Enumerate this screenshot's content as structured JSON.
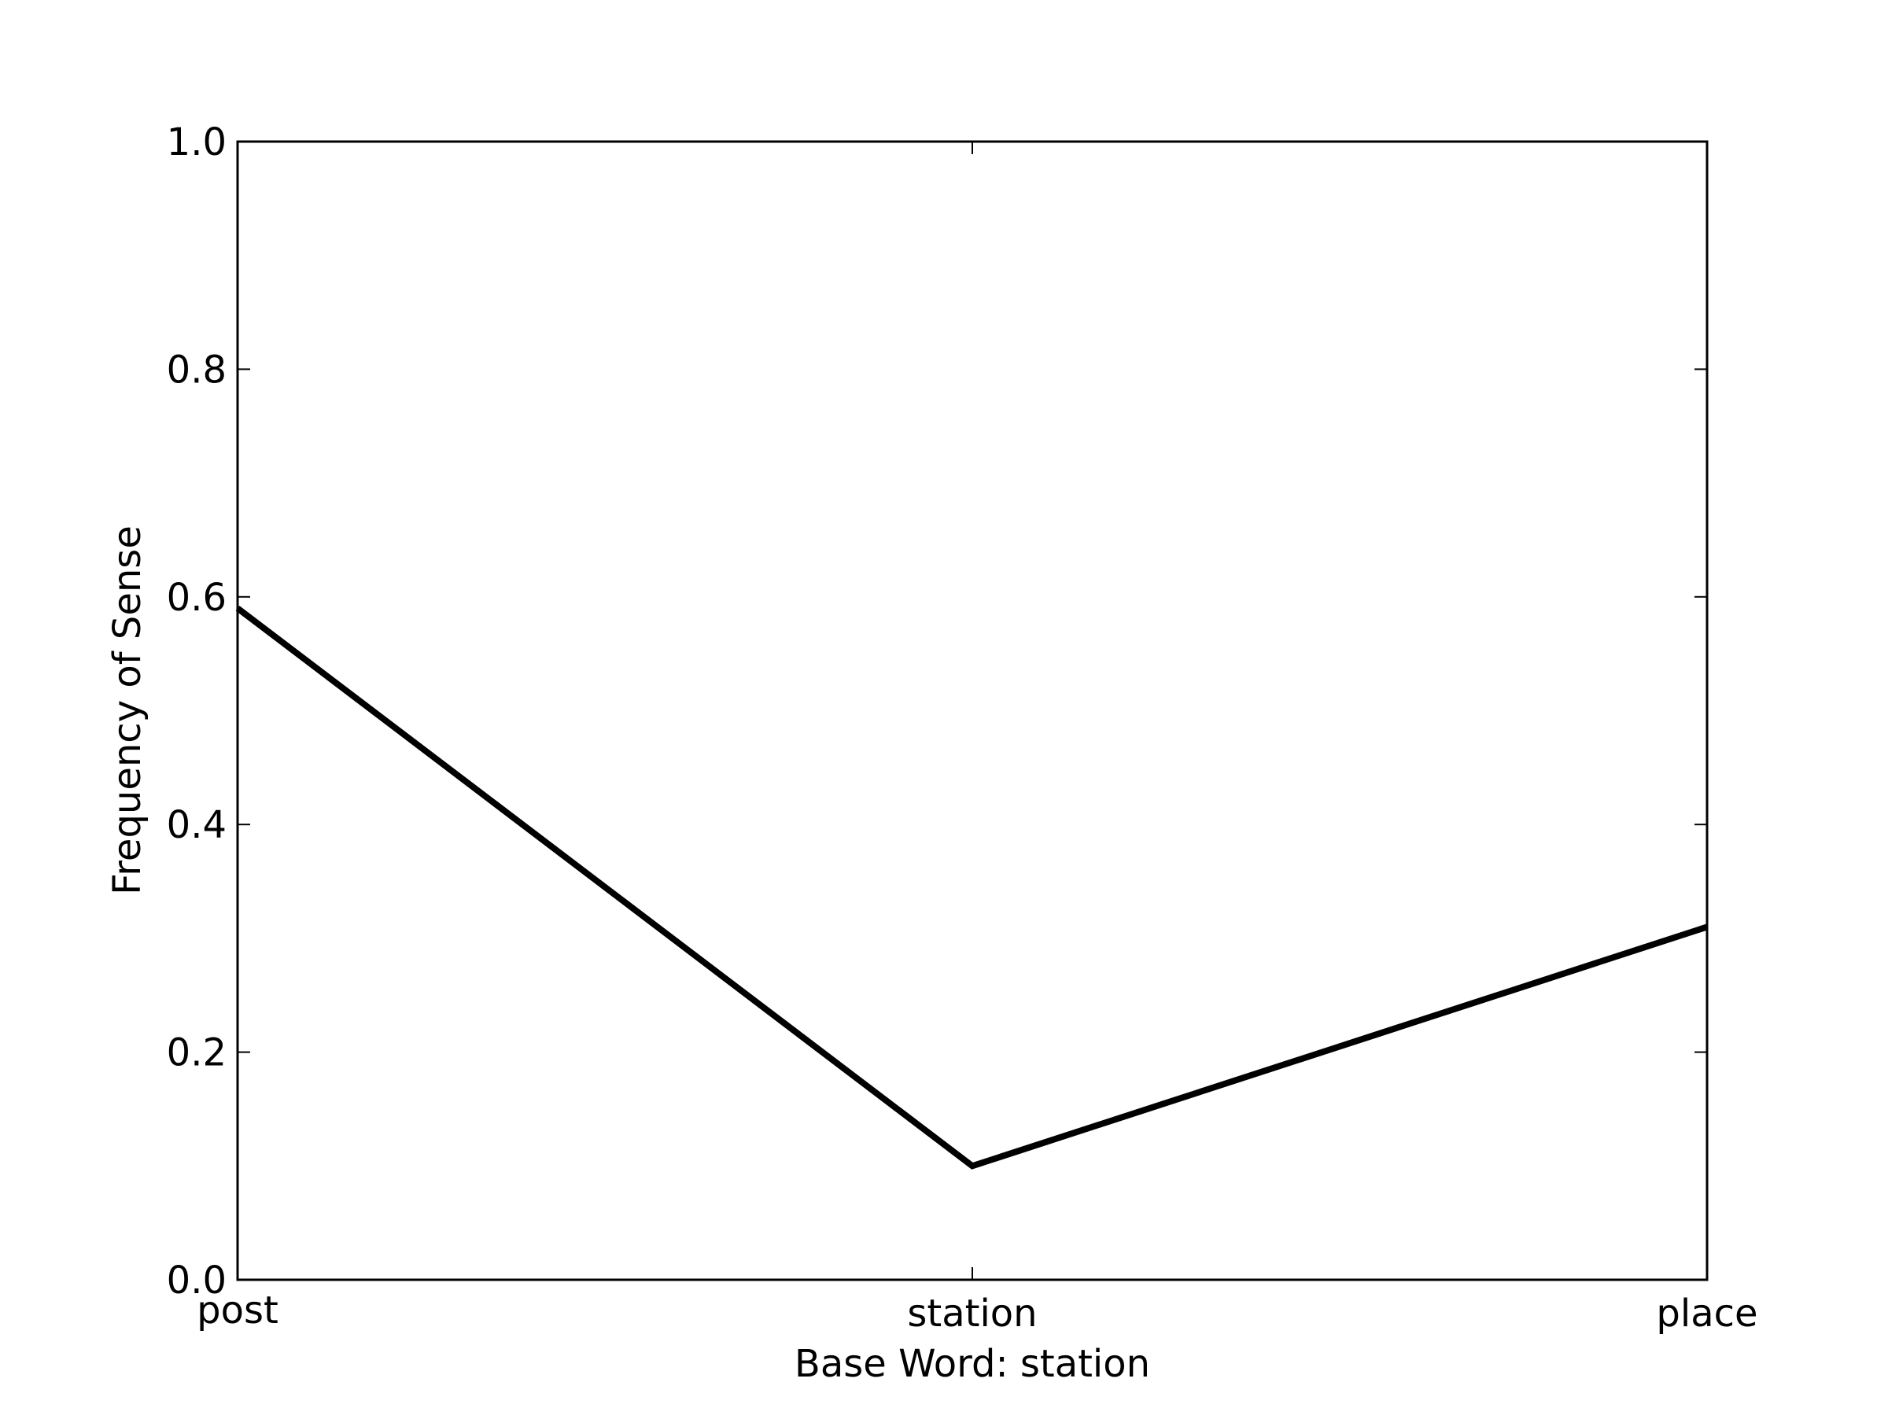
{
  "chart_data": {
    "type": "line",
    "title": "",
    "xlabel": "Base Word: station",
    "ylabel": "Frequency of Sense",
    "categories": [
      "post",
      "station",
      "place"
    ],
    "series": [
      {
        "values": [
          0.59,
          0.1,
          0.31
        ],
        "color": "#000000"
      }
    ],
    "ylim": [
      0.0,
      1.0
    ],
    "yticks": [
      0.0,
      0.2,
      0.4,
      0.6,
      0.8,
      1.0
    ],
    "ytick_labels": [
      "0.0",
      "0.2",
      "0.4",
      "0.6",
      "0.8",
      "1.0"
    ],
    "grid": false,
    "legend": "none"
  }
}
